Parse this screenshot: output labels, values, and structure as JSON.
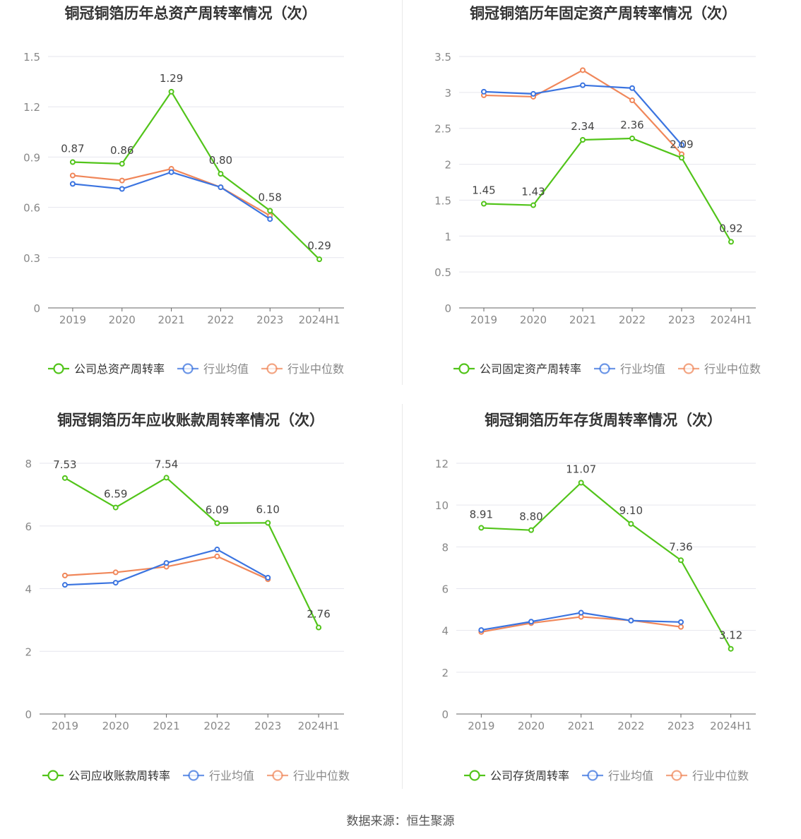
{
  "source": "数据来源：恒生聚源",
  "colors": {
    "company": "#52c41a",
    "avg": "#3b74e0",
    "median": "#f0875a"
  },
  "legend_labels": {
    "avg": "行业均值",
    "median": "行业中位数"
  },
  "chart_data": [
    {
      "type": "line",
      "title": "铜冠铜箔历年总资产周转率情况（次）",
      "x": [
        "2019",
        "2020",
        "2021",
        "2022",
        "2023",
        "2024H1"
      ],
      "ylim": [
        0,
        1.5
      ],
      "yticks": [
        "0",
        "0.3",
        "0.6",
        "0.9",
        "1.2",
        "1.5"
      ],
      "series": [
        {
          "name": "公司总资产周转率",
          "values": [
            0.87,
            0.86,
            1.29,
            0.8,
            0.58,
            0.29
          ],
          "labels": [
            "0.87",
            "0.86",
            "1.29",
            "0.80",
            "0.58",
            "0.29"
          ]
        },
        {
          "name": "行业均值",
          "values": [
            0.74,
            0.71,
            0.81,
            0.72,
            0.53,
            null
          ]
        },
        {
          "name": "行业中位数",
          "values": [
            0.79,
            0.76,
            0.83,
            0.72,
            0.55,
            null
          ]
        }
      ]
    },
    {
      "type": "line",
      "title": "铜冠铜箔历年固定资产周转率情况（次）",
      "x": [
        "2019",
        "2020",
        "2021",
        "2022",
        "2023",
        "2024H1"
      ],
      "ylim": [
        0,
        3.5
      ],
      "yticks": [
        "0",
        "0.5",
        "1",
        "1.5",
        "2",
        "2.5",
        "3",
        "3.5"
      ],
      "series": [
        {
          "name": "公司固定资产周转率",
          "values": [
            1.45,
            1.43,
            2.34,
            2.36,
            2.09,
            0.92
          ],
          "labels": [
            "1.45",
            "1.43",
            "2.34",
            "2.36",
            "2.09",
            "0.92"
          ]
        },
        {
          "name": "行业均值",
          "values": [
            3.01,
            2.98,
            3.1,
            3.06,
            2.27,
            null
          ]
        },
        {
          "name": "行业中位数",
          "values": [
            2.96,
            2.94,
            3.31,
            2.89,
            2.14,
            null
          ]
        }
      ]
    },
    {
      "type": "line",
      "title": "铜冠铜箔历年应收账款周转率情况（次）",
      "x": [
        "2019",
        "2020",
        "2021",
        "2022",
        "2023",
        "2024H1"
      ],
      "ylim": [
        0,
        8
      ],
      "yticks": [
        "0",
        "2",
        "4",
        "6",
        "8"
      ],
      "series": [
        {
          "name": "公司应收账款周转率",
          "values": [
            7.53,
            6.59,
            7.54,
            6.09,
            6.1,
            2.76
          ],
          "labels": [
            "7.53",
            "6.59",
            "7.54",
            "6.09",
            "6.10",
            "2.76"
          ]
        },
        {
          "name": "行业均值",
          "values": [
            4.12,
            4.19,
            4.82,
            5.25,
            4.35,
            null
          ]
        },
        {
          "name": "行业中位数",
          "values": [
            4.42,
            4.52,
            4.7,
            5.03,
            4.3,
            null
          ]
        }
      ]
    },
    {
      "type": "line",
      "title": "铜冠铜箔历年存货周转率情况（次）",
      "x": [
        "2019",
        "2020",
        "2021",
        "2022",
        "2023",
        "2024H1"
      ],
      "ylim": [
        0,
        12
      ],
      "yticks": [
        "0",
        "2",
        "4",
        "6",
        "8",
        "10",
        "12"
      ],
      "series": [
        {
          "name": "公司存货周转率",
          "values": [
            8.91,
            8.8,
            11.07,
            9.1,
            7.36,
            3.12
          ],
          "labels": [
            "8.91",
            "8.80",
            "11.07",
            "9.10",
            "7.36",
            "3.12"
          ]
        },
        {
          "name": "行业均值",
          "values": [
            4.02,
            4.42,
            4.85,
            4.47,
            4.4,
            null
          ]
        },
        {
          "name": "行业中位数",
          "values": [
            3.93,
            4.35,
            4.65,
            4.48,
            4.17,
            null
          ]
        }
      ]
    }
  ]
}
